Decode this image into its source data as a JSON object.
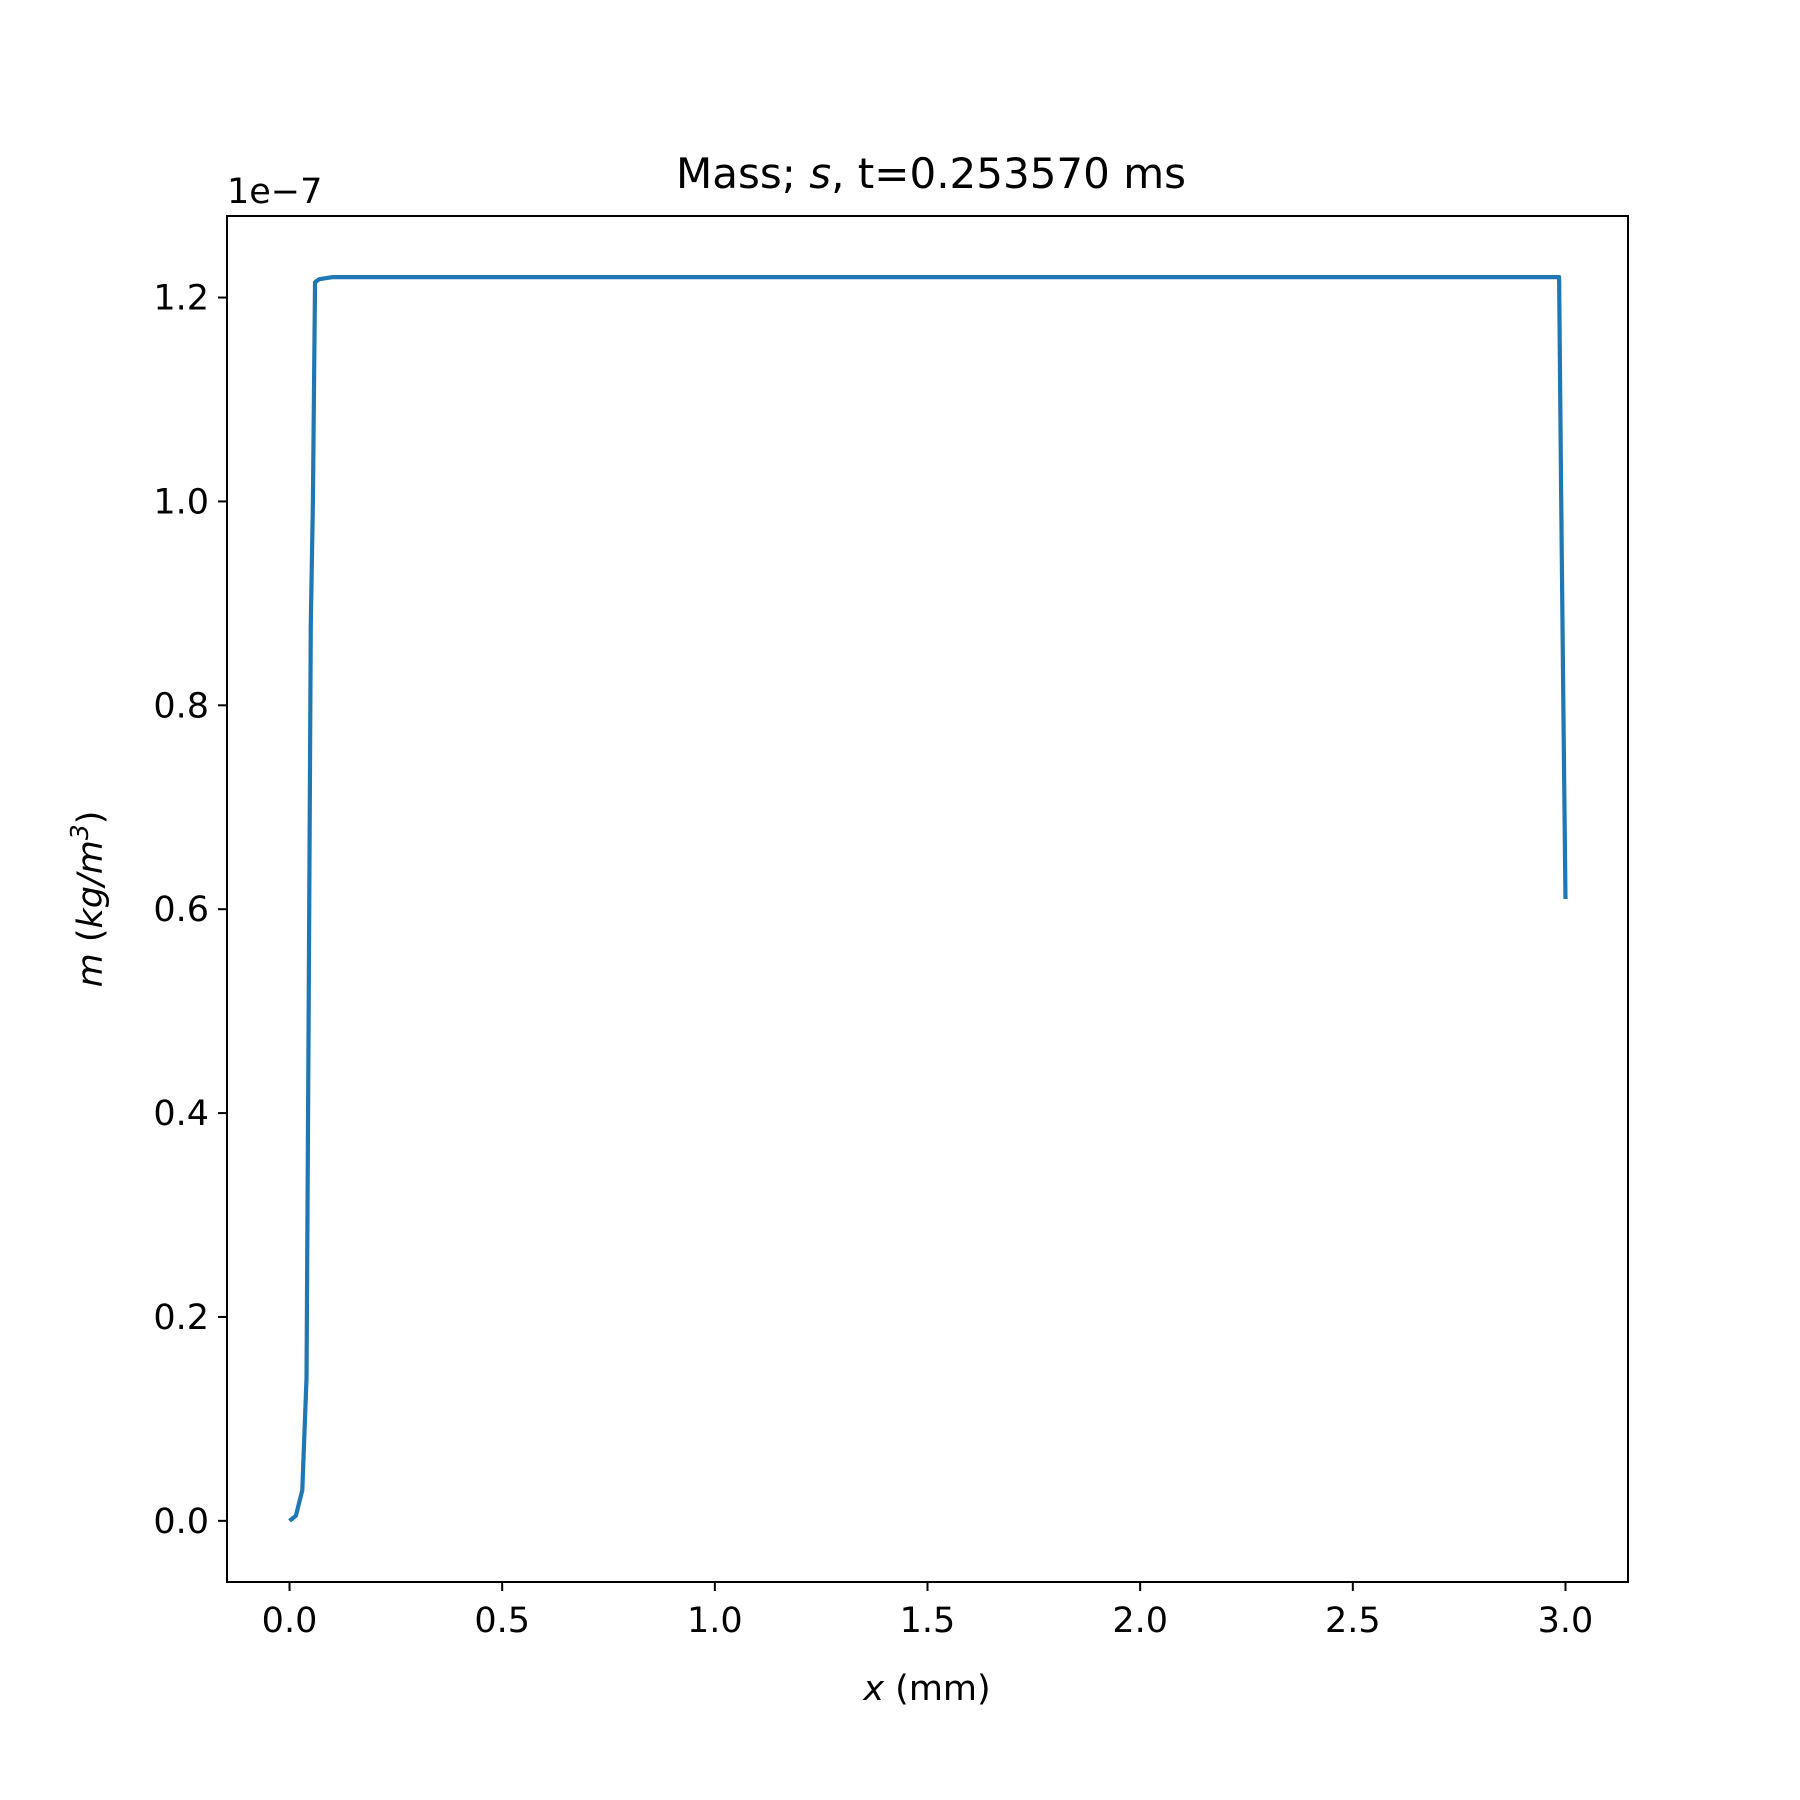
{
  "chart_data": {
    "type": "line",
    "title": {
      "prefix": "Mass; ",
      "symbol": "s",
      "suffix": ", t=0.253570 ms"
    },
    "xlabel": {
      "symbol": "x",
      "unit": " (mm)"
    },
    "ylabel": {
      "symbol": "m",
      "unit_open": " (",
      "unit_base": "kg/m",
      "unit_exp": "3",
      "unit_close": ")"
    },
    "offset_text": "1e−7",
    "xlim": [
      -0.147,
      3.147
    ],
    "ylim": [
      -0.06,
      1.28
    ],
    "x_ticks": [
      0.0,
      0.5,
      1.0,
      1.5,
      2.0,
      2.5,
      3.0
    ],
    "x_tick_labels": [
      "0.0",
      "0.5",
      "1.0",
      "1.5",
      "2.0",
      "2.5",
      "3.0"
    ],
    "y_ticks": [
      0.0,
      0.2,
      0.4,
      0.6,
      0.8,
      1.0,
      1.2
    ],
    "y_tick_labels": [
      "0.0",
      "0.2",
      "0.4",
      "0.6",
      "0.8",
      "1.0",
      "1.2"
    ],
    "grid": false,
    "series": [
      {
        "color": "#1f77b4",
        "x": [
          0.0,
          0.015,
          0.03,
          0.04,
          0.045,
          0.05,
          0.055,
          0.06,
          0.07,
          0.1,
          0.2,
          1.0,
          2.0,
          2.985,
          2.99,
          2.995,
          3.0
        ],
        "y": [
          0.0,
          0.005,
          0.03,
          0.14,
          0.5,
          0.88,
          1.0,
          1.215,
          1.218,
          1.22,
          1.22,
          1.22,
          1.22,
          1.22,
          1.0,
          0.8,
          0.61
        ]
      }
    ]
  }
}
